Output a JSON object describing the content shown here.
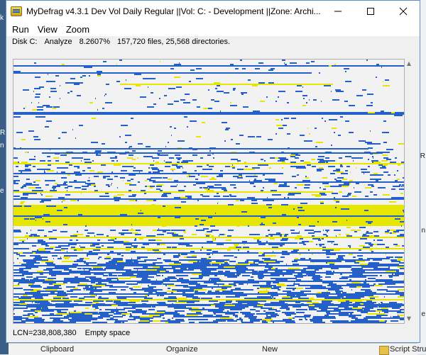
{
  "window": {
    "title": "MyDefrag v4.3.1    Dev Vol Daily Regular ||Vol: C: - Development ||Zone: Archi...",
    "minimize_icon": "minimize-icon",
    "maximize_icon": "maximize-icon",
    "close_icon": "close-icon"
  },
  "menu": {
    "items": [
      "Run",
      "View",
      "Zoom"
    ]
  },
  "info": {
    "disk": "Disk C:",
    "action": "Analyze",
    "percent": "8.2607%",
    "counts": "157,720 files, 25,568 directories."
  },
  "status": {
    "lcn": "LCN=238,808,380",
    "cluster": "Empty space"
  },
  "background": {
    "left_fragments": [
      "k",
      "R",
      "n",
      "e"
    ],
    "right_fragments": [
      "R",
      "n",
      "e"
    ],
    "bottom": {
      "clipboard": "Clipboard",
      "organize": "Organize",
      "new": "New",
      "script": "Script Stru"
    }
  },
  "colors": {
    "data": "#2460c8",
    "fragment": "#e6e600",
    "empty": "#f2f2f2",
    "window_border": "#5a8fc8"
  }
}
